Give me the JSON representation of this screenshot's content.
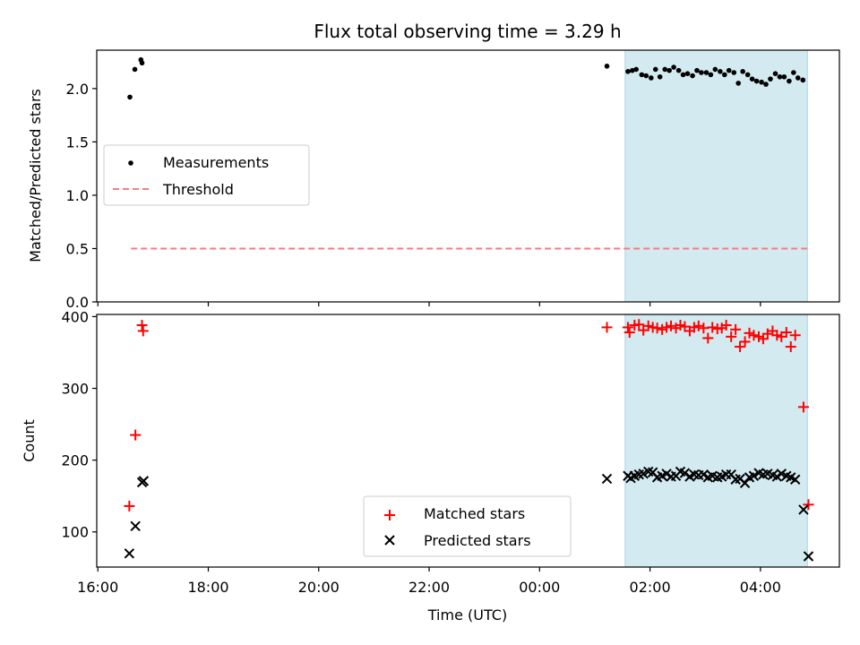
{
  "chart_data": [
    {
      "type": "scatter",
      "title": "Flux total observing time = 3.29 h",
      "xlabel": "",
      "ylabel": "Matched/Predicted stars",
      "ylim": [
        0.0,
        2.36
      ],
      "yticks": [
        0.0,
        0.5,
        1.0,
        1.5,
        2.0
      ],
      "ytick_labels": [
        "0.0",
        "0.5",
        "1.0",
        "1.5",
        "2.0"
      ],
      "xlim_hours": [
        15.98,
        29.43
      ],
      "xticks_hours": [
        16,
        18,
        20,
        22,
        24,
        26,
        28
      ],
      "shaded_region_hours": [
        25.55,
        28.85
      ],
      "shaded_color": "#d3eaf0",
      "legend_position": "center-left",
      "series": [
        {
          "name": "Measurements",
          "marker": "dot",
          "color": "#000000",
          "points": [
            [
              16.58,
              1.92
            ],
            [
              16.67,
              2.18
            ],
            [
              16.78,
              2.27
            ],
            [
              16.8,
              2.24
            ],
            [
              25.22,
              2.21
            ],
            [
              25.6,
              2.16
            ],
            [
              25.68,
              2.17
            ],
            [
              25.75,
              2.18
            ],
            [
              25.85,
              2.13
            ],
            [
              25.93,
              2.12
            ],
            [
              26.02,
              2.1
            ],
            [
              26.1,
              2.18
            ],
            [
              26.18,
              2.11
            ],
            [
              26.27,
              2.18
            ],
            [
              26.35,
              2.17
            ],
            [
              26.43,
              2.2
            ],
            [
              26.52,
              2.17
            ],
            [
              26.6,
              2.13
            ],
            [
              26.68,
              2.14
            ],
            [
              26.77,
              2.12
            ],
            [
              26.85,
              2.17
            ],
            [
              26.93,
              2.15
            ],
            [
              27.02,
              2.15
            ],
            [
              27.1,
              2.13
            ],
            [
              27.18,
              2.18
            ],
            [
              27.27,
              2.16
            ],
            [
              27.35,
              2.13
            ],
            [
              27.43,
              2.17
            ],
            [
              27.52,
              2.15
            ],
            [
              27.6,
              2.05
            ],
            [
              27.68,
              2.16
            ],
            [
              27.77,
              2.13
            ],
            [
              27.85,
              2.09
            ],
            [
              27.93,
              2.07
            ],
            [
              28.02,
              2.06
            ],
            [
              28.1,
              2.04
            ],
            [
              28.18,
              2.09
            ],
            [
              28.27,
              2.14
            ],
            [
              28.35,
              2.11
            ],
            [
              28.43,
              2.11
            ],
            [
              28.52,
              2.07
            ],
            [
              28.6,
              2.15
            ],
            [
              28.68,
              2.1
            ],
            [
              28.77,
              2.08
            ]
          ]
        },
        {
          "name": "Threshold",
          "marker": "dashed-line",
          "color": "#f08080",
          "points": [
            [
              16.6,
              0.5
            ],
            [
              28.85,
              0.5
            ]
          ]
        }
      ]
    },
    {
      "type": "scatter",
      "title": "",
      "xlabel": "Time (UTC)",
      "ylabel": "Count",
      "ylim": [
        51,
        403
      ],
      "yticks": [
        100,
        200,
        300,
        400
      ],
      "ytick_labels": [
        "100",
        "200",
        "300",
        "400"
      ],
      "xlim_hours": [
        15.98,
        29.43
      ],
      "xticks_hours": [
        16,
        18,
        20,
        22,
        24,
        26,
        28
      ],
      "xtick_labels": [
        "16:00",
        "18:00",
        "20:00",
        "22:00",
        "00:00",
        "02:00",
        "04:00"
      ],
      "shaded_region_hours": [
        25.55,
        28.85
      ],
      "shaded_color": "#d3eaf0",
      "legend_position": "bottom-center",
      "series": [
        {
          "name": "Matched stars",
          "marker": "plus",
          "color": "#ff0000",
          "points": [
            [
              16.57,
              136
            ],
            [
              16.68,
              235
            ],
            [
              16.8,
              388
            ],
            [
              16.82,
              380
            ],
            [
              25.22,
              385
            ],
            [
              25.6,
              385
            ],
            [
              25.63,
              378
            ],
            [
              25.72,
              388
            ],
            [
              25.8,
              389
            ],
            [
              25.88,
              381
            ],
            [
              25.97,
              387
            ],
            [
              26.05,
              385
            ],
            [
              26.13,
              384
            ],
            [
              26.22,
              382
            ],
            [
              26.3,
              385
            ],
            [
              26.38,
              387
            ],
            [
              26.47,
              384
            ],
            [
              26.55,
              388
            ],
            [
              26.63,
              386
            ],
            [
              26.72,
              380
            ],
            [
              26.8,
              385
            ],
            [
              26.88,
              387
            ],
            [
              26.97,
              384
            ],
            [
              27.05,
              370
            ],
            [
              27.13,
              385
            ],
            [
              27.22,
              383
            ],
            [
              27.3,
              384
            ],
            [
              27.38,
              388
            ],
            [
              27.47,
              372
            ],
            [
              27.55,
              382
            ],
            [
              27.63,
              358
            ],
            [
              27.72,
              365
            ],
            [
              27.8,
              377
            ],
            [
              27.88,
              374
            ],
            [
              27.97,
              372
            ],
            [
              28.05,
              369
            ],
            [
              28.13,
              376
            ],
            [
              28.22,
              380
            ],
            [
              28.3,
              374
            ],
            [
              28.38,
              372
            ],
            [
              28.47,
              378
            ],
            [
              28.55,
              358
            ],
            [
              28.63,
              374
            ],
            [
              28.78,
              274
            ],
            [
              28.87,
              138
            ]
          ]
        },
        {
          "name": "Predicted stars",
          "marker": "x",
          "color": "#000000",
          "points": [
            [
              16.57,
              70
            ],
            [
              16.68,
              108
            ],
            [
              16.8,
              169
            ],
            [
              16.83,
              171
            ],
            [
              25.22,
              174
            ],
            [
              25.6,
              178
            ],
            [
              25.65,
              175
            ],
            [
              25.72,
              178
            ],
            [
              25.8,
              180
            ],
            [
              25.88,
              181
            ],
            [
              25.97,
              184
            ],
            [
              26.05,
              183
            ],
            [
              26.13,
              176
            ],
            [
              26.22,
              178
            ],
            [
              26.3,
              181
            ],
            [
              26.38,
              177
            ],
            [
              26.47,
              178
            ],
            [
              26.55,
              184
            ],
            [
              26.63,
              182
            ],
            [
              26.72,
              177
            ],
            [
              26.8,
              180
            ],
            [
              26.88,
              179
            ],
            [
              26.97,
              180
            ],
            [
              27.05,
              176
            ],
            [
              27.13,
              178
            ],
            [
              27.22,
              176
            ],
            [
              27.3,
              177
            ],
            [
              27.38,
              180
            ],
            [
              27.47,
              180
            ],
            [
              27.55,
              173
            ],
            [
              27.63,
              174
            ],
            [
              27.72,
              168
            ],
            [
              27.8,
              176
            ],
            [
              27.88,
              178
            ],
            [
              27.97,
              182
            ],
            [
              28.05,
              180
            ],
            [
              28.13,
              181
            ],
            [
              28.22,
              179
            ],
            [
              28.3,
              177
            ],
            [
              28.38,
              181
            ],
            [
              28.47,
              178
            ],
            [
              28.55,
              176
            ],
            [
              28.63,
              173
            ],
            [
              28.78,
              131
            ],
            [
              28.87,
              66
            ]
          ]
        }
      ]
    }
  ]
}
